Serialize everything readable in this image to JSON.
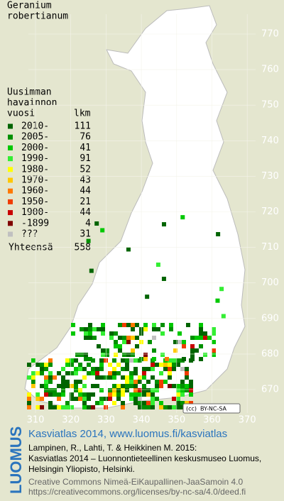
{
  "title": [
    "Geranium",
    "robertianum"
  ],
  "legend": {
    "header": [
      "Uusimman",
      "havainnon"
    ],
    "col_year": "vuosi",
    "col_count": "lkm",
    "items": [
      {
        "label": "2010-",
        "count": 111,
        "color": "#006400"
      },
      {
        "label": "2005-",
        "count": 76,
        "color": "#009000"
      },
      {
        "label": "2000-",
        "count": 41,
        "color": "#00c800"
      },
      {
        "label": "1990-",
        "count": 91,
        "color": "#33ee33"
      },
      {
        "label": "1980-",
        "count": 52,
        "color": "#ffff00"
      },
      {
        "label": "1970-",
        "count": 43,
        "color": "#ffc800"
      },
      {
        "label": "1960-",
        "count": 44,
        "color": "#ff7800"
      },
      {
        "label": "1950-",
        "count": 21,
        "color": "#f03c00"
      },
      {
        "label": "1900-",
        "count": 44,
        "color": "#c80000"
      },
      {
        "label": "-1899",
        "count": 4,
        "color": "#800000"
      },
      {
        "label": "???",
        "count": 31,
        "color": "#c0c0c0"
      }
    ],
    "total_label": "Yhteensä",
    "total": 558
  },
  "axes": {
    "y_labels": [
      770,
      760,
      750,
      740,
      730,
      720,
      710,
      700,
      690,
      680,
      670
    ],
    "x_labels": [
      310,
      320,
      330,
      340,
      350,
      360,
      370
    ]
  },
  "license_badge": [
    "(cc)",
    "BY-NC-SA"
  ],
  "footer": {
    "brand": "LUOMUS",
    "headline": "Kasviatlas 2014, www.luomus.fi/kasviatlas",
    "citation": [
      "Lampinen, R., Lahti, T. & Heikkinen M. 2015:",
      "Kasviatlas 2014 – Luonnontieteellinen keskusmuseo Luomus,",
      "Helsingin Yliopisto, Helsinki."
    ],
    "license": [
      "Creative Commons Nimeä-EiKaupallinen-JaaSamoin 4.0",
      "https://creativecommons.org/licenses/by-nc-sa/4.0/deed.fi"
    ]
  }
}
